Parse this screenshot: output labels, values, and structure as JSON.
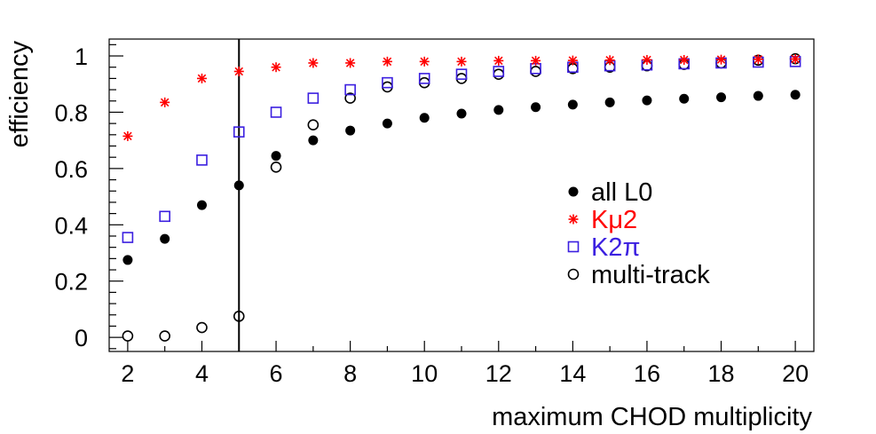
{
  "colors": {
    "all_l0": "#000000",
    "kmu2": "#ff0000",
    "k2pi": "#3b1fe0",
    "multi_track": "#000000",
    "axis": "#000000"
  },
  "chart_data": {
    "type": "scatter",
    "title": "",
    "xlabel": "maximum CHOD multiplicity",
    "ylabel": "efficiency",
    "xlim": [
      1.5,
      20.5
    ],
    "ylim": [
      -0.05,
      1.06
    ],
    "x_ticks": [
      2,
      4,
      6,
      8,
      10,
      12,
      14,
      16,
      18,
      20
    ],
    "x_tick_labels": [
      "2",
      "4",
      "6",
      "8",
      "10",
      "12",
      "14",
      "16",
      "18",
      "20"
    ],
    "y_ticks": [
      0,
      0.2,
      0.4,
      0.6,
      0.8,
      1
    ],
    "y_tick_labels": [
      "0",
      "0.2",
      "0.4",
      "0.6",
      "0.8",
      "1"
    ],
    "vertical_line_x": 5,
    "legend_position": "center-right",
    "x": [
      2,
      3,
      4,
      5,
      6,
      7,
      8,
      9,
      10,
      11,
      12,
      13,
      14,
      15,
      16,
      17,
      18,
      19,
      20
    ],
    "series": [
      {
        "name": "all L0",
        "marker": "filled-circle",
        "values": [
          0.275,
          0.35,
          0.47,
          0.54,
          0.645,
          0.7,
          0.735,
          0.76,
          0.78,
          0.795,
          0.808,
          0.818,
          0.827,
          0.835,
          0.842,
          0.848,
          0.853,
          0.858,
          0.862
        ]
      },
      {
        "name": "Kμ2",
        "marker": "star",
        "values": [
          0.715,
          0.835,
          0.92,
          0.945,
          0.96,
          0.975,
          0.975,
          0.98,
          0.98,
          0.98,
          0.983,
          0.983,
          0.984,
          0.985,
          0.986,
          0.986,
          0.987,
          0.988,
          0.989
        ]
      },
      {
        "name": "K2π",
        "marker": "open-square",
        "values": [
          0.355,
          0.43,
          0.63,
          0.73,
          0.8,
          0.85,
          0.88,
          0.905,
          0.92,
          0.935,
          0.945,
          0.955,
          0.96,
          0.965,
          0.968,
          0.972,
          0.975,
          0.978,
          0.98
        ]
      },
      {
        "name": "multi-track",
        "marker": "open-circle",
        "values": [
          0.005,
          0.005,
          0.035,
          0.075,
          0.605,
          0.755,
          0.85,
          0.89,
          0.905,
          0.92,
          0.935,
          0.945,
          0.955,
          0.96,
          0.965,
          0.97,
          0.975,
          0.985,
          0.99
        ]
      }
    ]
  }
}
